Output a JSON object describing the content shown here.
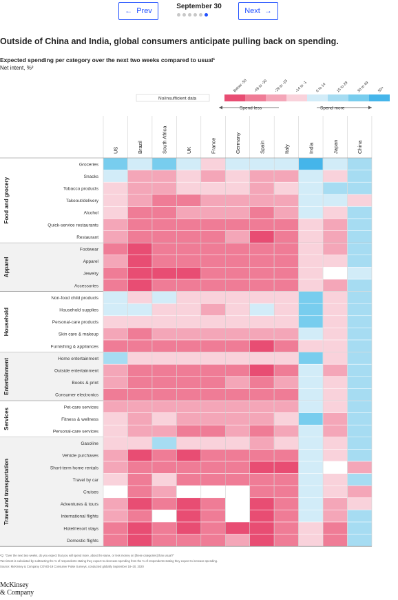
{
  "nav": {
    "prev_label": "Prev",
    "next_label": "Next",
    "date": "September 30"
  },
  "title": "Outside of China and India, global consumers anticipate pulling back on spending.",
  "subtitle": "Expected spending per category over the next two weeks compared to usual¹",
  "subtitle2": "Net intent, %²",
  "legend": {
    "insufficient_label": "No/insufficient data",
    "bins": [
      "Below -50",
      "-49 to -30",
      "-29 to -15",
      "-14 to -1",
      "0 to 14",
      "15 to 29",
      "30 to 49",
      "50+"
    ],
    "spend_less": "Spend less",
    "spend_more": "Spend more"
  },
  "colors": {
    "bins": [
      "#e84d73",
      "#ef7c96",
      "#f4a6b8",
      "#f9d2db",
      "#d2ecf8",
      "#a6dcf2",
      "#78cdee",
      "#45b5ea"
    ],
    "na": "#ffffff"
  },
  "footnotes": [
    "¹Q: \"Over the next two weeks, do you expect that you will spend more, about the same, or less money on [these categories] than usual?\"",
    "²Net intent is calculated by subtracting the % of respondents stating they expect to decrease spending from the % of respondents stating they expect to increase spending.",
    "Source: McKinsey & Company COVID-19 Consumer Pulse Surveys, conducted globally September 18–20, 2020"
  ],
  "logo": {
    "line1": "McKinsey",
    "line2": "& Company"
  },
  "chart_data": {
    "type": "heatmap",
    "value_meaning": "spending bin index: 0=Below -50, 1=-49 to -30, 2=-29 to -15, 3=-14 to -1, 4=0 to 14, 5=15 to 29, 6=30 to 49, 7=50+, null=No/insufficient data",
    "countries": [
      "US",
      "Brazil",
      "South Africa",
      "UK",
      "France",
      "Germany",
      "Spain",
      "Italy",
      "India",
      "Japan",
      "China"
    ],
    "groups": [
      {
        "name": "Food and grocery",
        "rows": [
          {
            "label": "Groceries",
            "values": [
              6,
              4,
              6,
              4,
              3,
              4,
              4,
              4,
              7,
              4,
              5
            ]
          },
          {
            "label": "Snacks",
            "values": [
              4,
              2,
              2,
              3,
              2,
              3,
              2,
              2,
              4,
              3,
              5
            ]
          },
          {
            "label": "Tobacco products",
            "values": [
              3,
              2,
              2,
              3,
              3,
              3,
              2,
              3,
              4,
              5,
              5
            ]
          },
          {
            "label": "Takeout/delivery",
            "values": [
              3,
              2,
              1,
              1,
              2,
              2,
              2,
              2,
              4,
              4,
              3
            ]
          },
          {
            "label": "Alcohol",
            "values": [
              3,
              1,
              1,
              2,
              2,
              2,
              1,
              2,
              4,
              3,
              5
            ]
          },
          {
            "label": "Quick-service restaurants",
            "values": [
              2,
              1,
              1,
              1,
              1,
              1,
              1,
              1,
              3,
              2,
              5
            ]
          },
          {
            "label": "Restaurant",
            "values": [
              2,
              1,
              1,
              1,
              1,
              2,
              0,
              1,
              3,
              2,
              5
            ]
          }
        ]
      },
      {
        "name": "Apparel",
        "rows": [
          {
            "label": "Footwear",
            "values": [
              1,
              0,
              1,
              1,
              1,
              1,
              1,
              1,
              3,
              2,
              5
            ]
          },
          {
            "label": "Apparel",
            "values": [
              2,
              0,
              1,
              1,
              1,
              1,
              1,
              1,
              3,
              3,
              5
            ]
          },
          {
            "label": "Jewelry",
            "values": [
              1,
              0,
              0,
              0,
              1,
              1,
              1,
              1,
              3,
              null,
              4
            ]
          },
          {
            "label": "Accessories",
            "values": [
              1,
              0,
              1,
              1,
              1,
              1,
              1,
              1,
              3,
              2,
              5
            ]
          }
        ]
      },
      {
        "name": "Household",
        "rows": [
          {
            "label": "Non-food child products",
            "values": [
              4,
              3,
              4,
              3,
              3,
              3,
              3,
              3,
              6,
              3,
              5
            ]
          },
          {
            "label": "Household supplies",
            "values": [
              4,
              4,
              3,
              3,
              2,
              3,
              4,
              3,
              6,
              3,
              5
            ]
          },
          {
            "label": "Personal-care products",
            "values": [
              3,
              3,
              3,
              3,
              3,
              3,
              3,
              3,
              6,
              3,
              5
            ]
          },
          {
            "label": "Skin care & makeup",
            "values": [
              2,
              1,
              2,
              2,
              2,
              2,
              2,
              2,
              4,
              3,
              5
            ]
          },
          {
            "label": "Furnishing & appliances",
            "values": [
              1,
              1,
              1,
              1,
              1,
              1,
              0,
              1,
              3,
              3,
              5
            ]
          }
        ]
      },
      {
        "name": "Entertainment",
        "rows": [
          {
            "label": "Home entertainment",
            "values": [
              5,
              3,
              3,
              3,
              3,
              3,
              3,
              3,
              6,
              3,
              5
            ]
          },
          {
            "label": "Outside entertainment",
            "values": [
              2,
              1,
              1,
              1,
              1,
              1,
              0,
              1,
              4,
              2,
              5
            ]
          },
          {
            "label": "Books & print",
            "values": [
              2,
              1,
              1,
              1,
              1,
              2,
              1,
              2,
              4,
              3,
              5
            ]
          },
          {
            "label": "Consumer electronics",
            "values": [
              1,
              1,
              1,
              1,
              1,
              1,
              1,
              1,
              4,
              3,
              5
            ]
          }
        ]
      },
      {
        "name": "Services",
        "rows": [
          {
            "label": "Pet-care services",
            "values": [
              2,
              2,
              2,
              2,
              2,
              2,
              2,
              2,
              4,
              3,
              5
            ]
          },
          {
            "label": "Fitness & wellness",
            "values": [
              3,
              2,
              3,
              2,
              2,
              2,
              2,
              3,
              6,
              2,
              5
            ]
          },
          {
            "label": "Personal-care services",
            "values": [
              3,
              2,
              2,
              1,
              1,
              2,
              1,
              2,
              4,
              2,
              5
            ]
          }
        ]
      },
      {
        "name": "Travel and transportation",
        "rows": [
          {
            "label": "Gasoline",
            "values": [
              3,
              3,
              5,
              3,
              3,
              3,
              2,
              3,
              4,
              3,
              5
            ]
          },
          {
            "label": "Vehicle purchases",
            "values": [
              2,
              0,
              1,
              0,
              1,
              1,
              1,
              1,
              4,
              3,
              5
            ]
          },
          {
            "label": "Short-term home rentals",
            "values": [
              2,
              1,
              1,
              1,
              1,
              1,
              0,
              0,
              4,
              null,
              2
            ]
          },
          {
            "label": "Travel by car",
            "values": [
              3,
              1,
              3,
              1,
              1,
              1,
              1,
              1,
              4,
              3,
              5
            ]
          },
          {
            "label": "Cruises",
            "values": [
              null,
              1,
              2,
              null,
              null,
              null,
              1,
              1,
              4,
              3,
              2
            ]
          },
          {
            "label": "Adventures & tours",
            "values": [
              2,
              0,
              1,
              0,
              1,
              null,
              0,
              1,
              4,
              2,
              3
            ]
          },
          {
            "label": "International flights",
            "values": [
              2,
              1,
              null,
              0,
              1,
              null,
              0,
              1,
              4,
              2,
              5
            ]
          },
          {
            "label": "Hotel/resort stays",
            "values": [
              1,
              0,
              1,
              0,
              1,
              0,
              0,
              1,
              3,
              1,
              5
            ]
          },
          {
            "label": "Domestic flights",
            "values": [
              1,
              0,
              1,
              1,
              1,
              2,
              0,
              1,
              3,
              1,
              5
            ]
          }
        ]
      }
    ]
  }
}
